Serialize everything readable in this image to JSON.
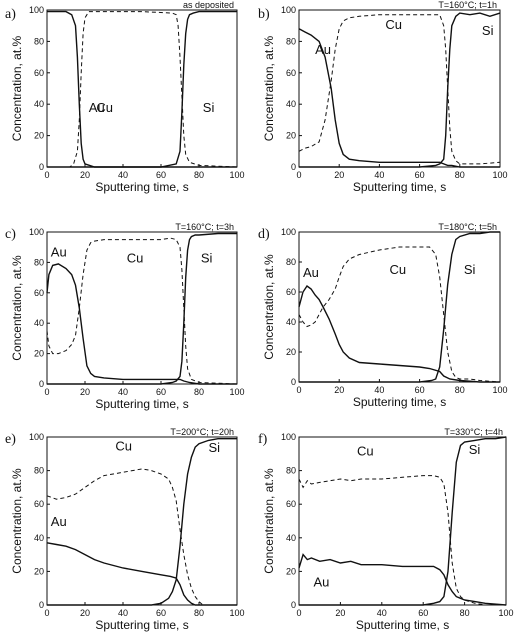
{
  "chart_data": [
    {
      "type": "line",
      "panel_label": "a)",
      "condition": "as deposited",
      "xlabel": "Sputtering time, s",
      "ylabel": "Concentration, at.%",
      "xlim": [
        0,
        100
      ],
      "ylim": [
        0,
        100
      ],
      "xticks": [
        "0",
        "20",
        "40",
        "60",
        "80",
        "100"
      ],
      "yticks": [
        "0",
        "20",
        "40",
        "60",
        "80",
        "100"
      ],
      "series": [
        {
          "name": "Au",
          "style": "solid",
          "x": [
            0,
            10,
            13,
            15,
            16,
            17,
            18,
            19,
            20,
            25,
            40,
            60,
            100
          ],
          "y": [
            99,
            99,
            97,
            90,
            70,
            40,
            15,
            5,
            2,
            0,
            0,
            0,
            0
          ]
        },
        {
          "name": "Cu",
          "style": "dashed",
          "x": [
            0,
            12,
            14,
            16,
            17,
            18,
            19,
            20,
            22,
            30,
            50,
            66,
            68,
            69,
            70,
            71,
            72,
            73,
            75,
            80,
            100
          ],
          "y": [
            0,
            0,
            2,
            10,
            30,
            60,
            85,
            95,
            99,
            99,
            99,
            98,
            97,
            90,
            70,
            45,
            20,
            8,
            3,
            1,
            0
          ]
        },
        {
          "name": "Si",
          "style": "solid",
          "x": [
            0,
            60,
            68,
            70,
            71,
            72,
            73,
            74,
            75,
            77,
            80,
            90,
            100
          ],
          "y": [
            0,
            0,
            2,
            10,
            35,
            65,
            85,
            94,
            97,
            98,
            99,
            99,
            99
          ]
        }
      ],
      "annotations": [
        "Au",
        "Cu",
        "Si"
      ]
    },
    {
      "type": "line",
      "panel_label": "b)",
      "condition": "T=160°C; t=1h",
      "xlabel": "Sputtering time, s",
      "ylabel": "Concentration, at.%",
      "xlim": [
        0,
        100
      ],
      "ylim": [
        0,
        100
      ],
      "xticks": [
        "0",
        "20",
        "40",
        "60",
        "80",
        "100"
      ],
      "yticks": [
        "0",
        "20",
        "40",
        "60",
        "80",
        "100"
      ],
      "series": [
        {
          "name": "Au",
          "style": "solid",
          "x": [
            0,
            3,
            6,
            10,
            13,
            16,
            18,
            20,
            22,
            25,
            30,
            40,
            50,
            60,
            70,
            72,
            74,
            76,
            80,
            100
          ],
          "y": [
            88,
            86,
            84,
            80,
            70,
            50,
            30,
            15,
            8,
            5,
            4,
            3,
            3,
            3,
            3,
            2,
            1,
            1,
            0,
            0
          ]
        },
        {
          "name": "Cu",
          "style": "dashed",
          "x": [
            0,
            3,
            6,
            10,
            13,
            16,
            18,
            20,
            22,
            25,
            30,
            40,
            60,
            68,
            70,
            72,
            73,
            74,
            75,
            76,
            78,
            80,
            90,
            100
          ],
          "y": [
            10,
            12,
            13,
            16,
            30,
            55,
            75,
            88,
            93,
            95,
            96,
            97,
            97,
            97,
            97,
            90,
            75,
            50,
            25,
            10,
            4,
            2,
            2,
            3
          ]
        },
        {
          "name": "Si",
          "style": "solid",
          "x": [
            0,
            60,
            68,
            70,
            72,
            73,
            74,
            75,
            76,
            78,
            80,
            85,
            90,
            95,
            100
          ],
          "y": [
            0,
            0,
            1,
            2,
            5,
            20,
            50,
            75,
            90,
            96,
            98,
            97,
            98,
            96,
            98
          ]
        }
      ],
      "annotations": [
        "Au",
        "Cu",
        "Si"
      ]
    },
    {
      "type": "line",
      "panel_label": "c)",
      "condition": "T=160°C; t=3h",
      "xlabel": "Sputtering time, s",
      "ylabel": "Concentration, at.%",
      "xlim": [
        0,
        100
      ],
      "ylim": [
        0,
        100
      ],
      "xticks": [
        "0",
        "20",
        "40",
        "60",
        "80",
        "100"
      ],
      "yticks": [
        "0",
        "20",
        "40",
        "60",
        "80",
        "100"
      ],
      "series": [
        {
          "name": "Au",
          "style": "solid",
          "x": [
            0,
            1,
            3,
            6,
            10,
            13,
            15,
            17,
            19,
            21,
            23,
            25,
            30,
            40,
            50,
            60,
            65,
            68,
            70,
            72,
            75,
            80,
            100
          ],
          "y": [
            60,
            72,
            78,
            79,
            76,
            72,
            65,
            50,
            30,
            12,
            7,
            5,
            4,
            3,
            3,
            3,
            3,
            3,
            3,
            2,
            1,
            0,
            0
          ]
        },
        {
          "name": "Cu",
          "style": "dashed",
          "x": [
            0,
            1,
            3,
            6,
            10,
            13,
            15,
            17,
            19,
            21,
            23,
            25,
            30,
            40,
            50,
            60,
            65,
            68,
            70,
            71,
            72,
            73,
            74,
            76,
            80,
            100
          ],
          "y": [
            35,
            25,
            20,
            20,
            22,
            26,
            32,
            50,
            72,
            88,
            93,
            94,
            95,
            95,
            95,
            95,
            96,
            95,
            90,
            75,
            50,
            25,
            10,
            3,
            1,
            0
          ]
        },
        {
          "name": "Si",
          "style": "solid",
          "x": [
            0,
            60,
            66,
            68,
            70,
            71,
            72,
            73,
            74,
            75,
            76,
            78,
            80,
            90,
            100
          ],
          "y": [
            0,
            0,
            1,
            2,
            5,
            15,
            40,
            70,
            88,
            95,
            97,
            98,
            98,
            99,
            99
          ]
        }
      ],
      "annotations": [
        "Au",
        "Cu",
        "Si"
      ]
    },
    {
      "type": "line",
      "panel_label": "d)",
      "condition": "T=180°C; t=5h",
      "xlabel": "Sputtering time, s",
      "ylabel": "Concentration, at.%",
      "xlim": [
        0,
        100
      ],
      "ylim": [
        0,
        100
      ],
      "xticks": [
        "0",
        "20",
        "40",
        "60",
        "80",
        "100"
      ],
      "yticks": [
        "0",
        "20",
        "40",
        "60",
        "80",
        "100"
      ],
      "series": [
        {
          "name": "Au",
          "style": "solid",
          "x": [
            0,
            2,
            4,
            6,
            8,
            10,
            12,
            15,
            18,
            20,
            22,
            25,
            30,
            40,
            50,
            60,
            65,
            70,
            72,
            75,
            80,
            90,
            100
          ],
          "y": [
            50,
            60,
            64,
            62,
            58,
            55,
            50,
            42,
            32,
            25,
            20,
            16,
            13,
            12,
            11,
            10,
            9,
            7,
            4,
            2,
            1,
            0,
            0
          ]
        },
        {
          "name": "Cu",
          "style": "dashed",
          "x": [
            0,
            2,
            4,
            6,
            8,
            10,
            12,
            15,
            18,
            20,
            22,
            25,
            30,
            40,
            50,
            60,
            65,
            68,
            70,
            72,
            74,
            76,
            78,
            80,
            85,
            90,
            100
          ],
          "y": [
            45,
            40,
            37,
            38,
            40,
            45,
            50,
            55,
            62,
            70,
            77,
            82,
            85,
            88,
            90,
            90,
            90,
            85,
            70,
            45,
            20,
            7,
            3,
            2,
            2,
            1,
            0
          ]
        },
        {
          "name": "Si",
          "style": "solid",
          "x": [
            0,
            60,
            66,
            68,
            70,
            72,
            74,
            76,
            78,
            80,
            85,
            90,
            95,
            100
          ],
          "y": [
            0,
            0,
            1,
            2,
            10,
            35,
            65,
            85,
            95,
            97,
            99,
            99,
            100,
            100
          ]
        }
      ],
      "annotations": [
        "Au",
        "Cu",
        "Si"
      ]
    },
    {
      "type": "line",
      "panel_label": "e)",
      "condition": "T=200°C; t=20h",
      "xlabel": "Sputtering time, s",
      "ylabel": "Concentration, at.%",
      "xlim": [
        0,
        100
      ],
      "ylim": [
        0,
        100
      ],
      "xticks": [
        "0",
        "20",
        "40",
        "60",
        "80",
        "100"
      ],
      "yticks": [
        "0",
        "20",
        "40",
        "60",
        "80",
        "100"
      ],
      "series": [
        {
          "name": "Au",
          "style": "solid",
          "x": [
            0,
            5,
            10,
            15,
            20,
            25,
            30,
            40,
            50,
            60,
            65,
            68,
            70,
            72,
            74,
            76,
            78,
            80,
            85,
            90,
            100
          ],
          "y": [
            37,
            36,
            35,
            33,
            30,
            27,
            25,
            22,
            20,
            18,
            17,
            16,
            12,
            6,
            3,
            1,
            0,
            0,
            0,
            0,
            0
          ]
        },
        {
          "name": "Cu",
          "style": "dashed",
          "x": [
            0,
            5,
            10,
            15,
            20,
            25,
            30,
            40,
            50,
            55,
            60,
            64,
            66,
            68,
            70,
            72,
            74,
            76,
            78,
            80,
            82,
            85,
            90,
            100
          ],
          "y": [
            65,
            63,
            64,
            66,
            70,
            74,
            77,
            79,
            81,
            80,
            78,
            75,
            70,
            62,
            45,
            30,
            18,
            10,
            5,
            2,
            0,
            0,
            0,
            0
          ]
        },
        {
          "name": "Si",
          "style": "solid",
          "x": [
            0,
            55,
            60,
            64,
            66,
            68,
            70,
            72,
            74,
            76,
            78,
            80,
            85,
            90,
            95,
            100
          ],
          "y": [
            0,
            0,
            1,
            4,
            8,
            15,
            35,
            60,
            78,
            88,
            94,
            96,
            98,
            99,
            99,
            99
          ]
        }
      ],
      "annotations": [
        "Au",
        "Cu",
        "Si"
      ]
    },
    {
      "type": "line",
      "panel_label": "f)",
      "condition": "T=330°C; t=4h",
      "xlabel": "Sputtering time, s",
      "ylabel": "Concentration, at.%",
      "xlim": [
        0,
        100
      ],
      "ylim": [
        0,
        100
      ],
      "xticks": [
        "0",
        "20",
        "40",
        "60",
        "80",
        "100"
      ],
      "yticks": [
        "0",
        "20",
        "40",
        "60",
        "80",
        "100"
      ],
      "series": [
        {
          "name": "Au",
          "style": "solid",
          "x": [
            0,
            2,
            4,
            6,
            10,
            15,
            20,
            25,
            30,
            40,
            50,
            60,
            65,
            68,
            70,
            72,
            74,
            76,
            78,
            80,
            85,
            90,
            100
          ],
          "y": [
            22,
            30,
            27,
            28,
            26,
            27,
            25,
            26,
            24,
            24,
            23,
            23,
            23,
            21,
            18,
            12,
            8,
            5,
            4,
            3,
            2,
            1,
            0
          ]
        },
        {
          "name": "Cu",
          "style": "dashed",
          "x": [
            0,
            2,
            4,
            6,
            10,
            15,
            20,
            25,
            30,
            40,
            50,
            60,
            65,
            68,
            70,
            72,
            74,
            76,
            78,
            80,
            85,
            90,
            100
          ],
          "y": [
            75,
            70,
            74,
            72,
            73,
            74,
            75,
            74,
            75,
            75,
            76,
            77,
            77,
            76,
            72,
            55,
            25,
            10,
            5,
            3,
            1,
            0,
            0
          ]
        },
        {
          "name": "Si",
          "style": "solid",
          "x": [
            0,
            60,
            65,
            68,
            70,
            72,
            74,
            76,
            78,
            80,
            85,
            90,
            95,
            100
          ],
          "y": [
            0,
            0,
            1,
            2,
            5,
            20,
            55,
            85,
            95,
            97,
            98,
            99,
            99,
            100
          ]
        }
      ],
      "annotations": [
        "Au",
        "Cu",
        "Si"
      ]
    }
  ]
}
